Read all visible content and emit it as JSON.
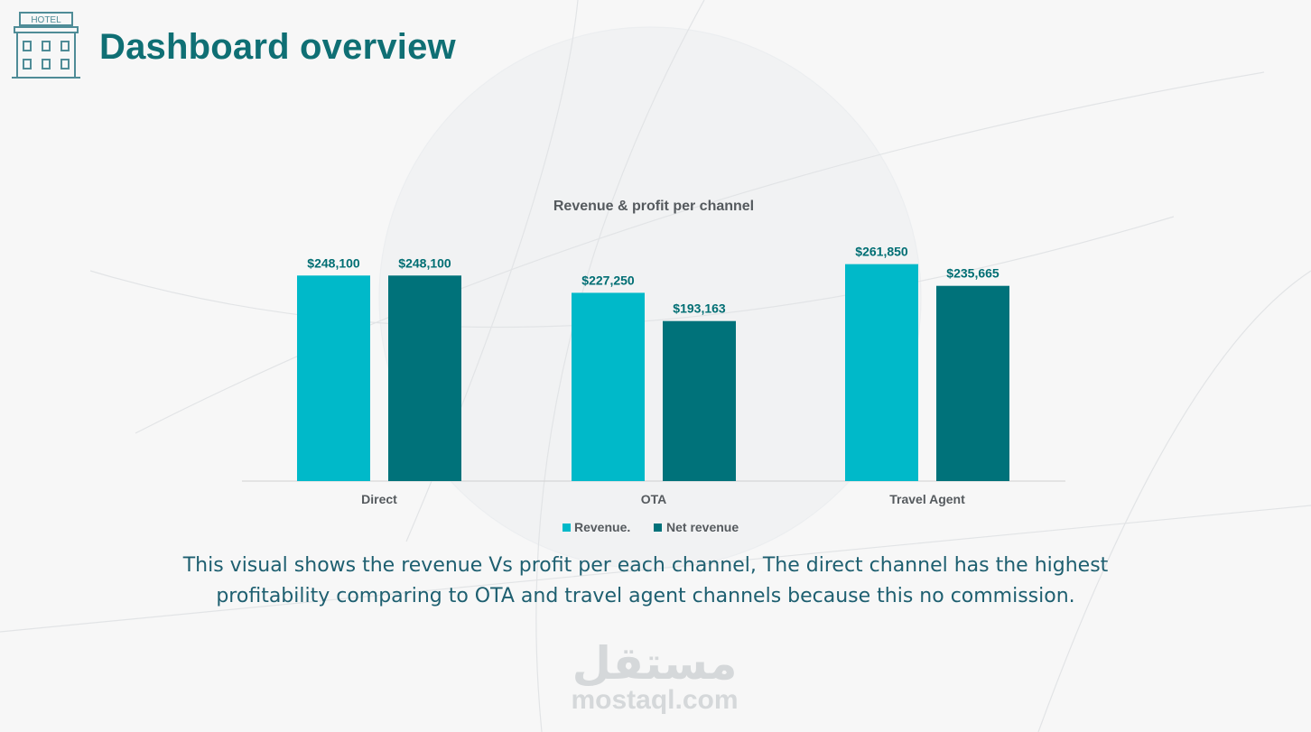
{
  "header": {
    "title": "Dashboard overview",
    "icon": "hotel-icon",
    "icon_sign_text": "HOTEL"
  },
  "chart_data": {
    "type": "bar",
    "title": "Revenue & profit per channel",
    "categories": [
      "Direct",
      "OTA",
      "Travel Agent"
    ],
    "series": [
      {
        "name": "Revenue.",
        "values": [
          248100,
          227250,
          261850
        ],
        "color": "#00b9c9",
        "labels": [
          "$248,100",
          "$227,250",
          "$261,850"
        ]
      },
      {
        "name": "Net revenue",
        "values": [
          248100,
          193163,
          235665
        ],
        "color": "#00727a",
        "labels": [
          "$248,100",
          "$193,163",
          "$235,665"
        ]
      }
    ],
    "ylim": [
      0,
      280000
    ],
    "grid": false,
    "legend": "bottom",
    "label_color": "#006e73"
  },
  "caption": {
    "line1": "This visual shows the revenue Vs profit per each channel, The direct channel has the highest",
    "line2": "profitability comparing to OTA and travel agent channels because this no commission."
  },
  "watermark": {
    "arabic": "مستقل",
    "latin": "mostaql.com"
  }
}
